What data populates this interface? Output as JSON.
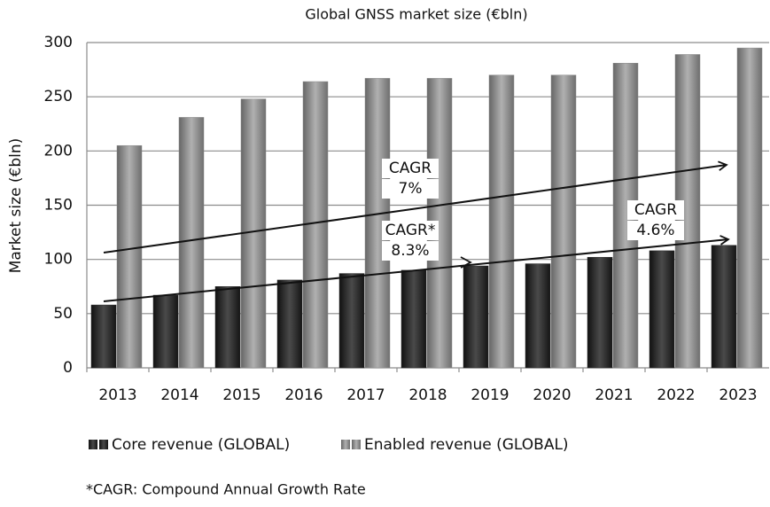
{
  "chart_data": {
    "type": "bar",
    "title": "Global GNSS market size (€bln)",
    "y_label": "Market size (€bln)",
    "categories": [
      "2013",
      "2014",
      "2015",
      "2016",
      "2017",
      "2018",
      "2019",
      "2020",
      "2021",
      "2022",
      "2023"
    ],
    "series": [
      {
        "name": "Core revenue (GLOBAL)",
        "color": "#2b2b2b",
        "values": [
          58,
          67,
          75,
          81,
          87,
          90,
          94,
          96,
          102,
          108,
          113
        ]
      },
      {
        "name": "Enabled revenue (GLOBAL)",
        "color": "#8a8a8a",
        "values": [
          205,
          231,
          248,
          264,
          267,
          267,
          270,
          270,
          281,
          289,
          295
        ]
      }
    ],
    "ylim": [
      0,
      300
    ],
    "yticks": [
      0,
      50,
      100,
      150,
      200,
      250,
      300
    ],
    "grid": true,
    "legend": "bottom",
    "annotations": [
      {
        "lines": [
          "CAGR",
          "7%"
        ]
      },
      {
        "lines": [
          "CAGR*",
          "8.3%"
        ]
      },
      {
        "lines": [
          "CAGR",
          "4.6%"
        ]
      }
    ],
    "footnote": "*CAGR: Compound Annual Growth Rate"
  }
}
